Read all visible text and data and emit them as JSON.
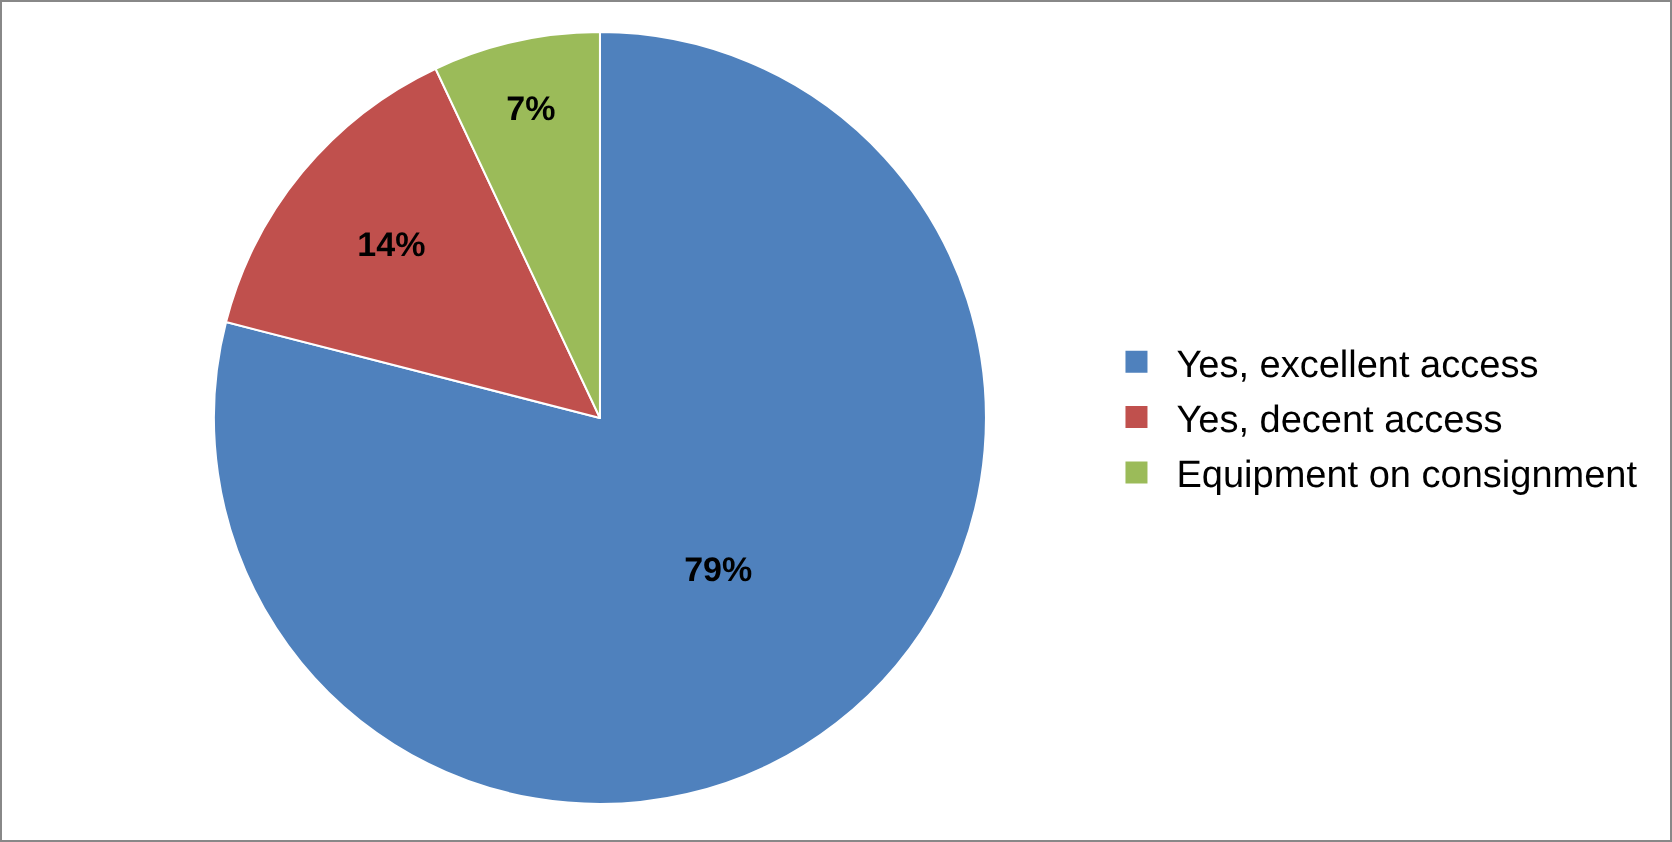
{
  "chart_data": {
    "type": "pie",
    "categories": [
      "Yes, excellent access",
      "Yes, decent access",
      "Equipment on consignment"
    ],
    "values": [
      79,
      14,
      7
    ],
    "colors": [
      "#4f81bd",
      "#c0504d",
      "#9bbb59"
    ],
    "value_labels": [
      "79%",
      "14%",
      "7%"
    ],
    "legend": "right"
  }
}
